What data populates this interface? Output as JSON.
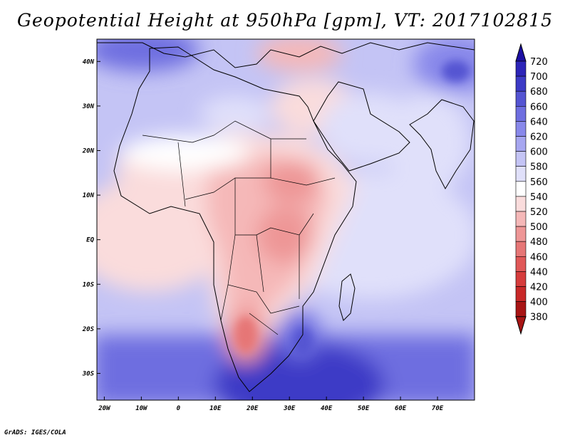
{
  "title": "Geopotential Height at 950hPa [gpm], VT: 2017102815",
  "credit": "GrADS: IGES/COLA",
  "map": {
    "lon_labels": [
      {
        "lon": -20,
        "text": "20W"
      },
      {
        "lon": -10,
        "text": "10W"
      },
      {
        "lon": 0,
        "text": "0"
      },
      {
        "lon": 10,
        "text": "10E"
      },
      {
        "lon": 20,
        "text": "20E"
      },
      {
        "lon": 30,
        "text": "30E"
      },
      {
        "lon": 40,
        "text": "40E"
      },
      {
        "lon": 50,
        "text": "50E"
      },
      {
        "lon": 60,
        "text": "60E"
      },
      {
        "lon": 70,
        "text": "70E"
      }
    ],
    "lat_labels": [
      {
        "lat": 40,
        "text": "40N"
      },
      {
        "lat": 30,
        "text": "30N"
      },
      {
        "lat": 20,
        "text": "20N"
      },
      {
        "lat": 10,
        "text": "10N"
      },
      {
        "lat": 0,
        "text": "EQ"
      },
      {
        "lat": -10,
        "text": "10S"
      },
      {
        "lat": -20,
        "text": "20S"
      },
      {
        "lat": -30,
        "text": "30S"
      }
    ],
    "lon_range": [
      -22,
      80
    ],
    "lat_range": [
      -36,
      45
    ]
  },
  "colorbar": {
    "labels": [
      "720",
      "700",
      "680",
      "660",
      "640",
      "620",
      "600",
      "580",
      "560",
      "540",
      "520",
      "500",
      "480",
      "460",
      "440",
      "420",
      "400",
      "380"
    ],
    "colors": [
      "#1c0fa3",
      "#2c24b8",
      "#3c3ac6",
      "#5454d2",
      "#6e6ee0",
      "#8888ea",
      "#a6a6f0",
      "#c4c4f5",
      "#e0e0fa",
      "#ffffff",
      "#fadcdc",
      "#f5b8b8",
      "#ee9696",
      "#e67676",
      "#e05858",
      "#d63c3c",
      "#c82828",
      "#a81414"
    ]
  }
}
